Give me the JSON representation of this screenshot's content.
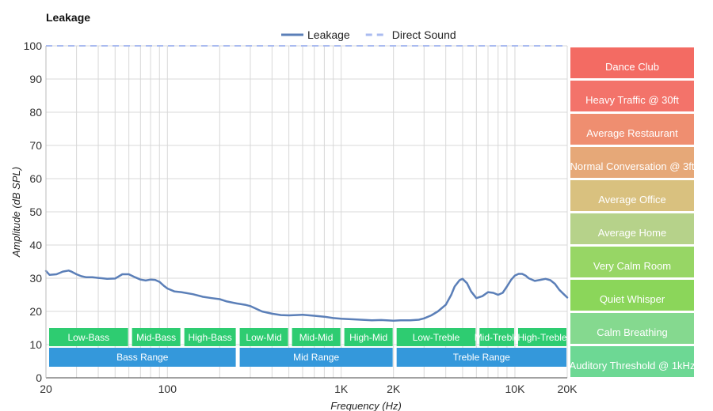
{
  "chart_data": {
    "type": "line",
    "title": "Leakage",
    "xlabel": "Frequency (Hz)",
    "ylabel": "Amplitude (dB SPL)",
    "x_scale": "log",
    "xlim": [
      20,
      20000
    ],
    "ylim": [
      0,
      100
    ],
    "y_ticks": [
      0,
      10,
      20,
      30,
      40,
      50,
      60,
      70,
      80,
      90,
      100
    ],
    "x_ticks": [
      {
        "value": 20,
        "label": "20"
      },
      {
        "value": 100,
        "label": "100"
      },
      {
        "value": 1000,
        "label": "1K"
      },
      {
        "value": 2000,
        "label": "2K"
      },
      {
        "value": 10000,
        "label": "10K"
      },
      {
        "value": 20000,
        "label": "20K"
      }
    ],
    "grid": true,
    "legend": {
      "placement": "top-center"
    },
    "series": [
      {
        "name": "Leakage",
        "color": "#5b7fb8",
        "style": "solid",
        "x": [
          20,
          21,
          23,
          25,
          27,
          28,
          30,
          32,
          34,
          37,
          40,
          45,
          50,
          55,
          60,
          65,
          70,
          75,
          80,
          85,
          90,
          95,
          100,
          110,
          120,
          140,
          160,
          180,
          200,
          220,
          250,
          280,
          300,
          350,
          400,
          450,
          500,
          550,
          600,
          700,
          800,
          900,
          1000,
          1200,
          1400,
          1500,
          1700,
          2000,
          2200,
          2500,
          2800,
          3000,
          3300,
          3600,
          4000,
          4300,
          4500,
          4800,
          5000,
          5300,
          5600,
          6000,
          6500,
          7000,
          7500,
          8000,
          8500,
          9000,
          9500,
          10000,
          10500,
          11000,
          11500,
          12000,
          13000,
          14000,
          15000,
          16000,
          17000,
          18000,
          19000,
          20000
        ],
        "y": [
          32.2,
          31.0,
          31.2,
          32.0,
          32.3,
          32.0,
          31.2,
          30.6,
          30.3,
          30.3,
          30.1,
          29.8,
          29.9,
          31.2,
          31.2,
          30.3,
          29.6,
          29.3,
          29.6,
          29.5,
          28.9,
          27.8,
          26.9,
          26.0,
          25.8,
          25.2,
          24.4,
          24.0,
          23.7,
          23.0,
          22.4,
          22.0,
          21.6,
          20.0,
          19.3,
          18.9,
          18.8,
          18.9,
          19.0,
          18.7,
          18.4,
          18.0,
          17.8,
          17.6,
          17.4,
          17.3,
          17.4,
          17.2,
          17.3,
          17.3,
          17.5,
          17.9,
          18.8,
          20.0,
          22.0,
          25.0,
          27.5,
          29.4,
          29.8,
          28.5,
          26.0,
          24.0,
          24.6,
          25.8,
          25.6,
          25.0,
          25.6,
          27.5,
          29.5,
          30.8,
          31.3,
          31.3,
          30.8,
          30.0,
          29.2,
          29.5,
          29.8,
          29.4,
          28.3,
          26.5,
          25.3,
          24.2
        ]
      },
      {
        "name": "Direct Sound",
        "color": "#aabbf0",
        "style": "dashed",
        "x": [
          20,
          20000
        ],
        "y": [
          100,
          100
        ]
      }
    ],
    "frequency_bands": [
      {
        "label": "Low-Bass",
        "from": 20,
        "to": 60
      },
      {
        "label": "Mid-Bass",
        "from": 60,
        "to": 120
      },
      {
        "label": "High-Bass",
        "from": 120,
        "to": 250
      },
      {
        "label": "Low-Mid",
        "from": 250,
        "to": 500
      },
      {
        "label": "Mid-Mid",
        "from": 500,
        "to": 1000
      },
      {
        "label": "High-Mid",
        "from": 1000,
        "to": 2000
      },
      {
        "label": "Low-Treble",
        "from": 2000,
        "to": 6000
      },
      {
        "label": "Mid-Treble",
        "from": 6000,
        "to": 10000
      },
      {
        "label": "High-Treble",
        "from": 10000,
        "to": 20000
      }
    ],
    "frequency_ranges": [
      {
        "label": "Bass Range",
        "from": 20,
        "to": 250
      },
      {
        "label": "Mid Range",
        "from": 250,
        "to": 2000
      },
      {
        "label": "Treble Range",
        "from": 2000,
        "to": 20000
      }
    ],
    "band_color": "#2ecc71",
    "range_color": "#3498db",
    "noise_levels": [
      {
        "label": "Dance Club",
        "color": "#f36b63"
      },
      {
        "label": "Heavy Traffic @ 30ft",
        "color": "#f3736a"
      },
      {
        "label": "Average Restaurant",
        "color": "#ef8e70"
      },
      {
        "label": "Normal Conversation @ 3ft",
        "color": "#e6a878"
      },
      {
        "label": "Average Office",
        "color": "#d9c17f"
      },
      {
        "label": "Average Home",
        "color": "#b6d28a"
      },
      {
        "label": "Very Calm Room",
        "color": "#97d665"
      },
      {
        "label": "Quiet Whisper",
        "color": "#8bd65a"
      },
      {
        "label": "Calm Breathing",
        "color": "#85d98f"
      },
      {
        "label": "Auditory Threshold @ 1kHz",
        "color": "#6dd894"
      }
    ]
  }
}
